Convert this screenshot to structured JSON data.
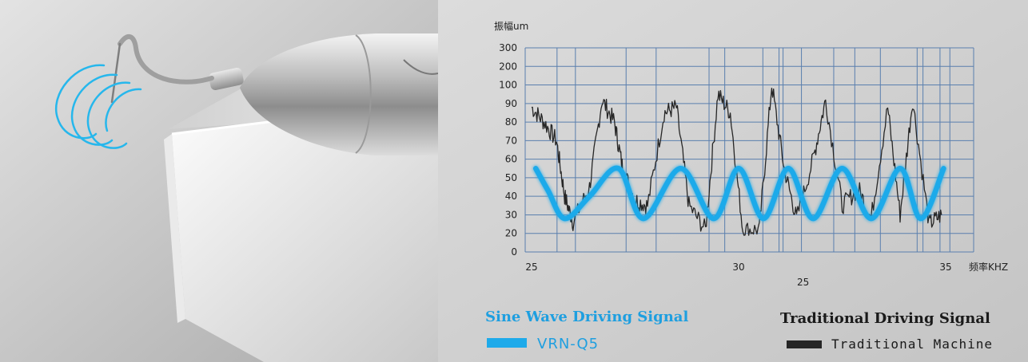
{
  "photo": {
    "icon": "ultrasonic-scaler-handpiece",
    "wave_icon": "vibration-wave"
  },
  "colors": {
    "sine": "#1eaaea",
    "traditional": "#262626",
    "grid": "#5a7fae",
    "legend_sine_title": "#1e9fe0",
    "legend_trad_title": "#1a1a1a"
  },
  "chart_data": {
    "type": "line",
    "ylabel": "振幅um",
    "xlabel": "频率KHZ",
    "x_tick_labels": [
      "25",
      "30",
      "35"
    ],
    "x_extra_label": "25",
    "xlim": [
      25,
      35
    ],
    "y_tick_labels": [
      "0",
      "20",
      "30",
      "40",
      "50",
      "60",
      "70",
      "80",
      "90",
      "100",
      "200",
      "300"
    ],
    "y_scale": "piecewise: 0 to 100 linear in steps of 10 (no 10 tick), then 200 and 300",
    "grid": true,
    "series": [
      {
        "name": "VRN-Q5",
        "style": "smooth sine",
        "x": [
          25.1,
          25.4,
          25.8,
          26.4,
          27.1,
          27.7,
          28.6,
          29.4,
          30.0,
          30.6,
          31.2,
          31.8,
          32.5,
          33.2,
          33.9,
          34.4,
          34.95
        ],
        "values": [
          55,
          43,
          28,
          40,
          55,
          28,
          55,
          28,
          55,
          28,
          55,
          28,
          55,
          28,
          55,
          28,
          55
        ]
      },
      {
        "name": "Traditional Machine",
        "style": "noisy jagged",
        "x": [
          25.0,
          25.3,
          25.6,
          25.8,
          26.0,
          26.4,
          26.7,
          27.0,
          27.2,
          27.5,
          27.8,
          28.2,
          28.5,
          28.8,
          29.2,
          29.5,
          29.8,
          30.1,
          30.5,
          30.8,
          31.1,
          31.4,
          31.8,
          32.1,
          32.5,
          32.9,
          33.2,
          33.6,
          33.9,
          34.2,
          34.6,
          34.9
        ],
        "values": [
          88,
          80,
          70,
          40,
          26,
          45,
          92,
          80,
          55,
          38,
          35,
          85,
          88,
          35,
          22,
          95,
          85,
          22,
          22,
          100,
          55,
          28,
          60,
          92,
          35,
          44,
          28,
          88,
          30,
          92,
          25,
          30
        ]
      }
    ]
  },
  "legend": {
    "sine_title": "Sine Wave Driving Signal",
    "sine_item": "VRN-Q5",
    "trad_title": "Traditional Driving Signal",
    "trad_item": "Traditional Machine"
  }
}
